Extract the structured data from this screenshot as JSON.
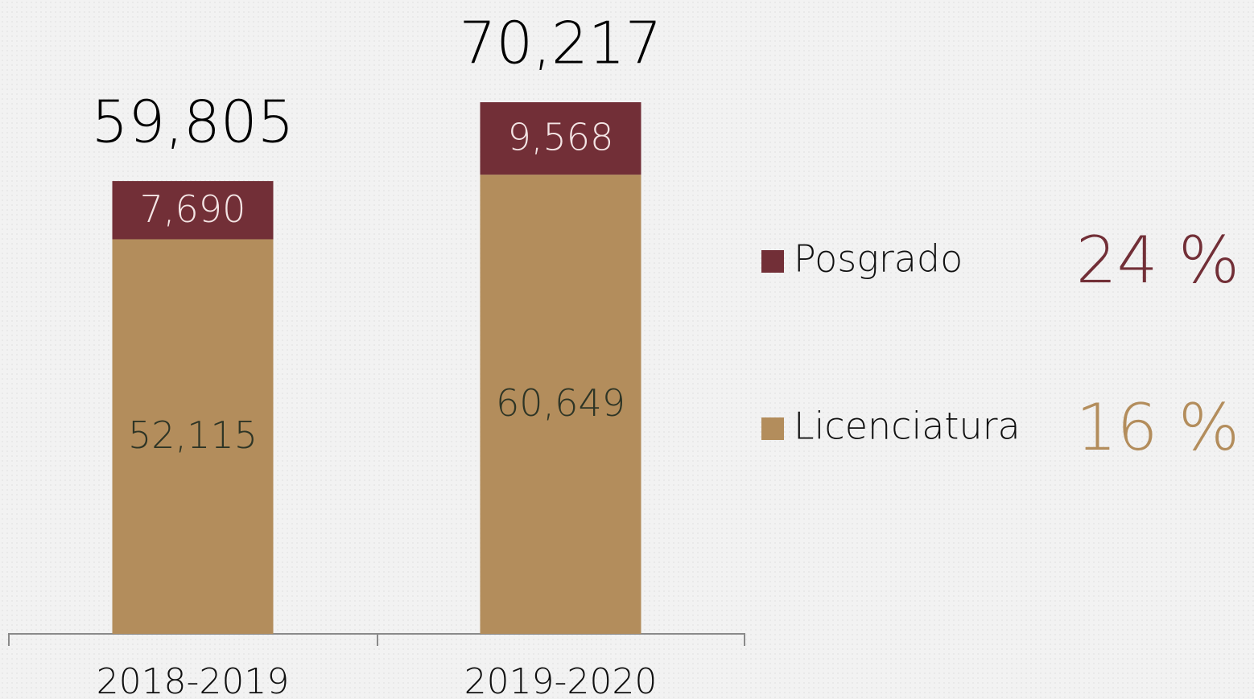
{
  "chart_data": {
    "type": "bar",
    "stacked": true,
    "categories": [
      "2018-2019",
      "2019-2020"
    ],
    "series": [
      {
        "name": "Licenciatura",
        "color": "#b38d5c",
        "label_color": "#2e3526",
        "values": [
          52115,
          60649
        ],
        "value_labels": [
          "52,115",
          "60,649"
        ],
        "growth": 16,
        "growth_label": "16 %"
      },
      {
        "name": "Posgrado",
        "color": "#722f37",
        "label_color": "#f3e4e4",
        "values": [
          7690,
          9568
        ],
        "value_labels": [
          "7,690",
          "9,568"
        ],
        "growth": 24,
        "growth_label": "24 %"
      }
    ],
    "totals": [
      59805,
      70217
    ],
    "total_labels": [
      "59,805",
      "70,217"
    ],
    "ylim": [
      0,
      80000
    ]
  }
}
